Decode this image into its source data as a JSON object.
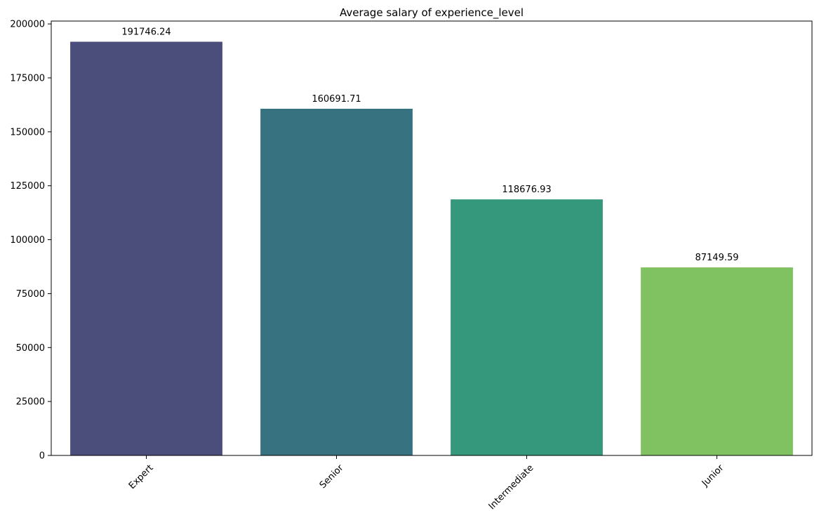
{
  "chart_data": {
    "type": "bar",
    "title": "Average salary of experience_level",
    "xlabel": "",
    "ylabel": "",
    "categories": [
      "Expert",
      "Senior",
      "Intermediate",
      "Junior"
    ],
    "values": [
      191746.24,
      160691.71,
      118676.93,
      87149.59
    ],
    "value_labels": [
      "191746.24",
      "160691.71",
      "118676.93",
      "87149.59"
    ],
    "colors": [
      "#4b4d7b",
      "#377280",
      "#35977b",
      "#80c262"
    ],
    "ylim": [
      0,
      201337
    ],
    "yticks": [
      0,
      25000,
      50000,
      75000,
      100000,
      125000,
      150000,
      175000,
      200000
    ],
    "ytick_labels": [
      "0",
      "25000",
      "50000",
      "75000",
      "100000",
      "125000",
      "150000",
      "175000",
      "200000"
    ],
    "grid": false,
    "x_tick_rotation": 45
  }
}
